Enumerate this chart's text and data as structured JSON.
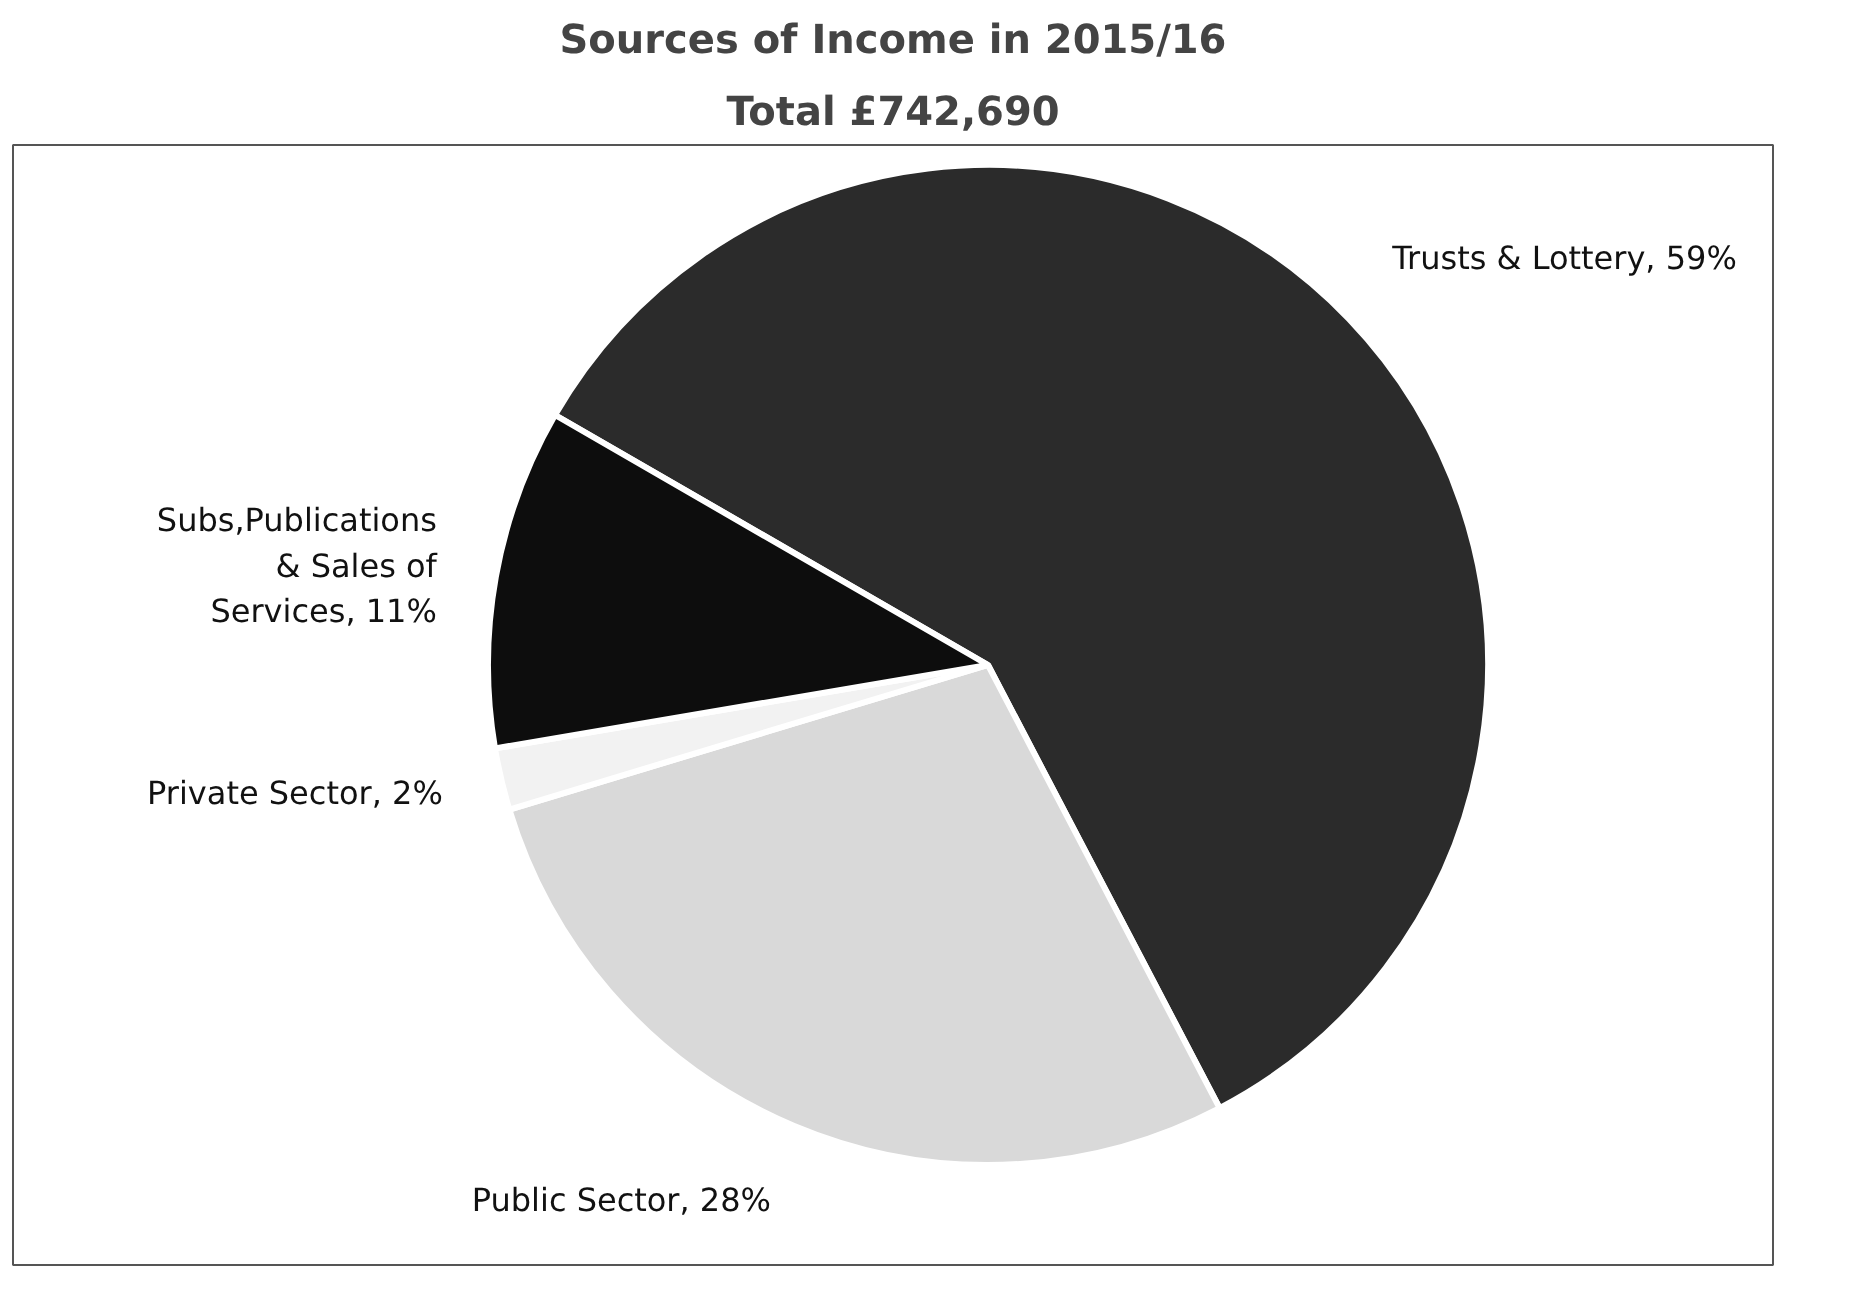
{
  "chart_data": {
    "type": "pie",
    "title": "Sources of Income in 2015/16",
    "subtitle": "Total £742,690",
    "categories": [
      "Trusts & Lottery",
      "Public Sector",
      "Private Sector",
      "Subs,Publications & Sales of Services"
    ],
    "values": [
      59,
      28,
      2,
      11
    ],
    "value_labels": [
      "59%",
      "28%",
      "2%",
      "11%"
    ],
    "colors": [
      "#2b2b2b",
      "#d9d9d9",
      "#f2f2f2",
      "#0d0d0d"
    ]
  }
}
